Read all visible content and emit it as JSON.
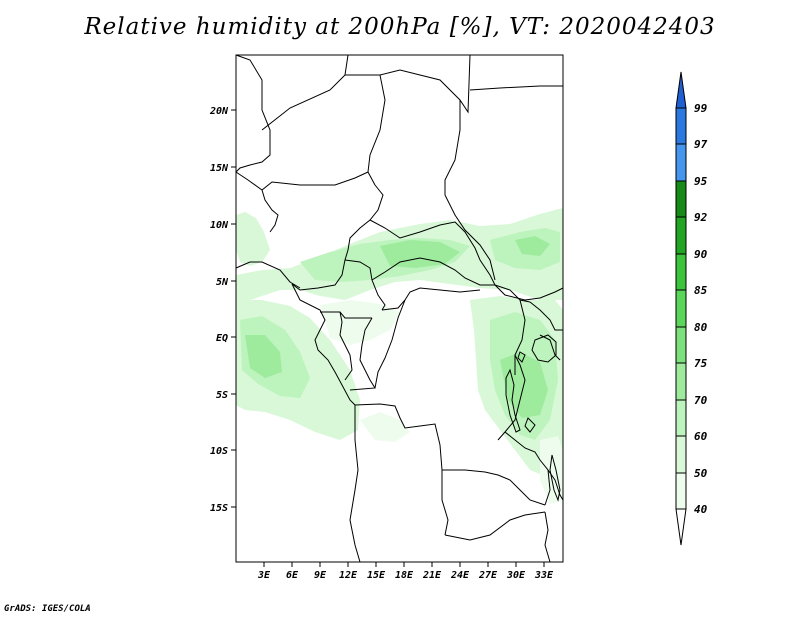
{
  "title": "Relative humidity at 200hPa [%], VT: 2020042403",
  "footer": "GrADS: IGES/COLA",
  "map": {
    "lat_labels": [
      "20N",
      "15N",
      "10N",
      "5N",
      "EQ",
      "5S",
      "10S",
      "15S"
    ],
    "lon_labels": [
      "3E",
      "6E",
      "9E",
      "12E",
      "15E",
      "18E",
      "21E",
      "24E",
      "27E",
      "30E",
      "33E"
    ]
  },
  "colorbar": {
    "levels": [
      "99",
      "97",
      "95",
      "92",
      "90",
      "85",
      "80",
      "75",
      "70",
      "60",
      "50",
      "40"
    ],
    "colors": {
      "above_99": "#1f5fd4",
      "97_99": "#2a78e0",
      "95_97": "#4696f0",
      "92_95": "#178a17",
      "90_92": "#22a522",
      "85_90": "#3cc43c",
      "80_85": "#5ad75a",
      "75_80": "#7ce07c",
      "70_75": "#9eeb9e",
      "60_70": "#bdf3bd",
      "50_60": "#d8f8d8",
      "40_50": "#eefcee",
      "below_40": "#ffffff"
    }
  }
}
